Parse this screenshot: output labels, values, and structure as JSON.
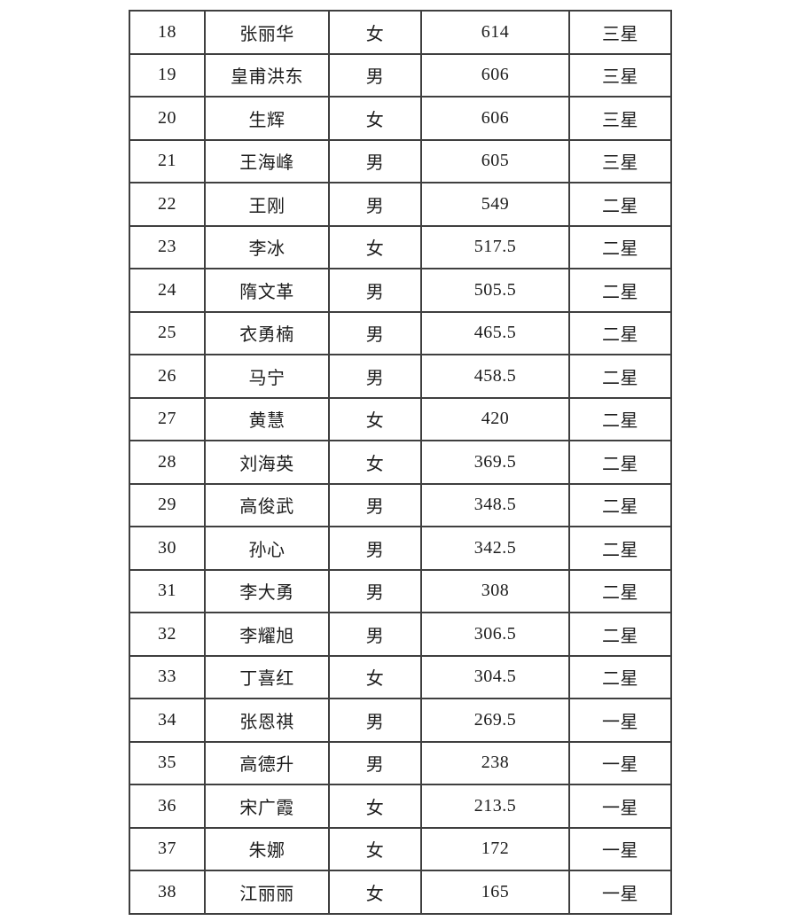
{
  "colors": {
    "page_background": "#ffffff",
    "table_border": "#3f3f3f",
    "text": "#1c1c1c"
  },
  "table": {
    "visible_row_range": "18-38",
    "columns": [
      "index",
      "name",
      "gender",
      "score",
      "rating"
    ],
    "rows": [
      {
        "index": "18",
        "name": "张丽华",
        "gender": "女",
        "score": "614",
        "rating": "三星"
      },
      {
        "index": "19",
        "name": "皇甫洪东",
        "gender": "男",
        "score": "606",
        "rating": "三星"
      },
      {
        "index": "20",
        "name": "生辉",
        "gender": "女",
        "score": "606",
        "rating": "三星"
      },
      {
        "index": "21",
        "name": "王海峰",
        "gender": "男",
        "score": "605",
        "rating": "三星"
      },
      {
        "index": "22",
        "name": "王刚",
        "gender": "男",
        "score": "549",
        "rating": "二星"
      },
      {
        "index": "23",
        "name": "李冰",
        "gender": "女",
        "score": "517.5",
        "rating": "二星"
      },
      {
        "index": "24",
        "name": "隋文革",
        "gender": "男",
        "score": "505.5",
        "rating": "二星"
      },
      {
        "index": "25",
        "name": "衣勇楠",
        "gender": "男",
        "score": "465.5",
        "rating": "二星"
      },
      {
        "index": "26",
        "name": "马宁",
        "gender": "男",
        "score": "458.5",
        "rating": "二星"
      },
      {
        "index": "27",
        "name": "黄慧",
        "gender": "女",
        "score": "420",
        "rating": "二星"
      },
      {
        "index": "28",
        "name": "刘海英",
        "gender": "女",
        "score": "369.5",
        "rating": "二星"
      },
      {
        "index": "29",
        "name": "高俊武",
        "gender": "男",
        "score": "348.5",
        "rating": "二星"
      },
      {
        "index": "30",
        "name": "孙心",
        "gender": "男",
        "score": "342.5",
        "rating": "二星"
      },
      {
        "index": "31",
        "name": "李大勇",
        "gender": "男",
        "score": "308",
        "rating": "二星"
      },
      {
        "index": "32",
        "name": "李耀旭",
        "gender": "男",
        "score": "306.5",
        "rating": "二星"
      },
      {
        "index": "33",
        "name": "丁喜红",
        "gender": "女",
        "score": "304.5",
        "rating": "二星"
      },
      {
        "index": "34",
        "name": "张恩祺",
        "gender": "男",
        "score": "269.5",
        "rating": "一星"
      },
      {
        "index": "35",
        "name": "高德升",
        "gender": "男",
        "score": "238",
        "rating": "一星"
      },
      {
        "index": "36",
        "name": "宋广霞",
        "gender": "女",
        "score": "213.5",
        "rating": "一星"
      },
      {
        "index": "37",
        "name": "朱娜",
        "gender": "女",
        "score": "172",
        "rating": "一星"
      },
      {
        "index": "38",
        "name": "江丽丽",
        "gender": "女",
        "score": "165",
        "rating": "一星"
      }
    ]
  }
}
